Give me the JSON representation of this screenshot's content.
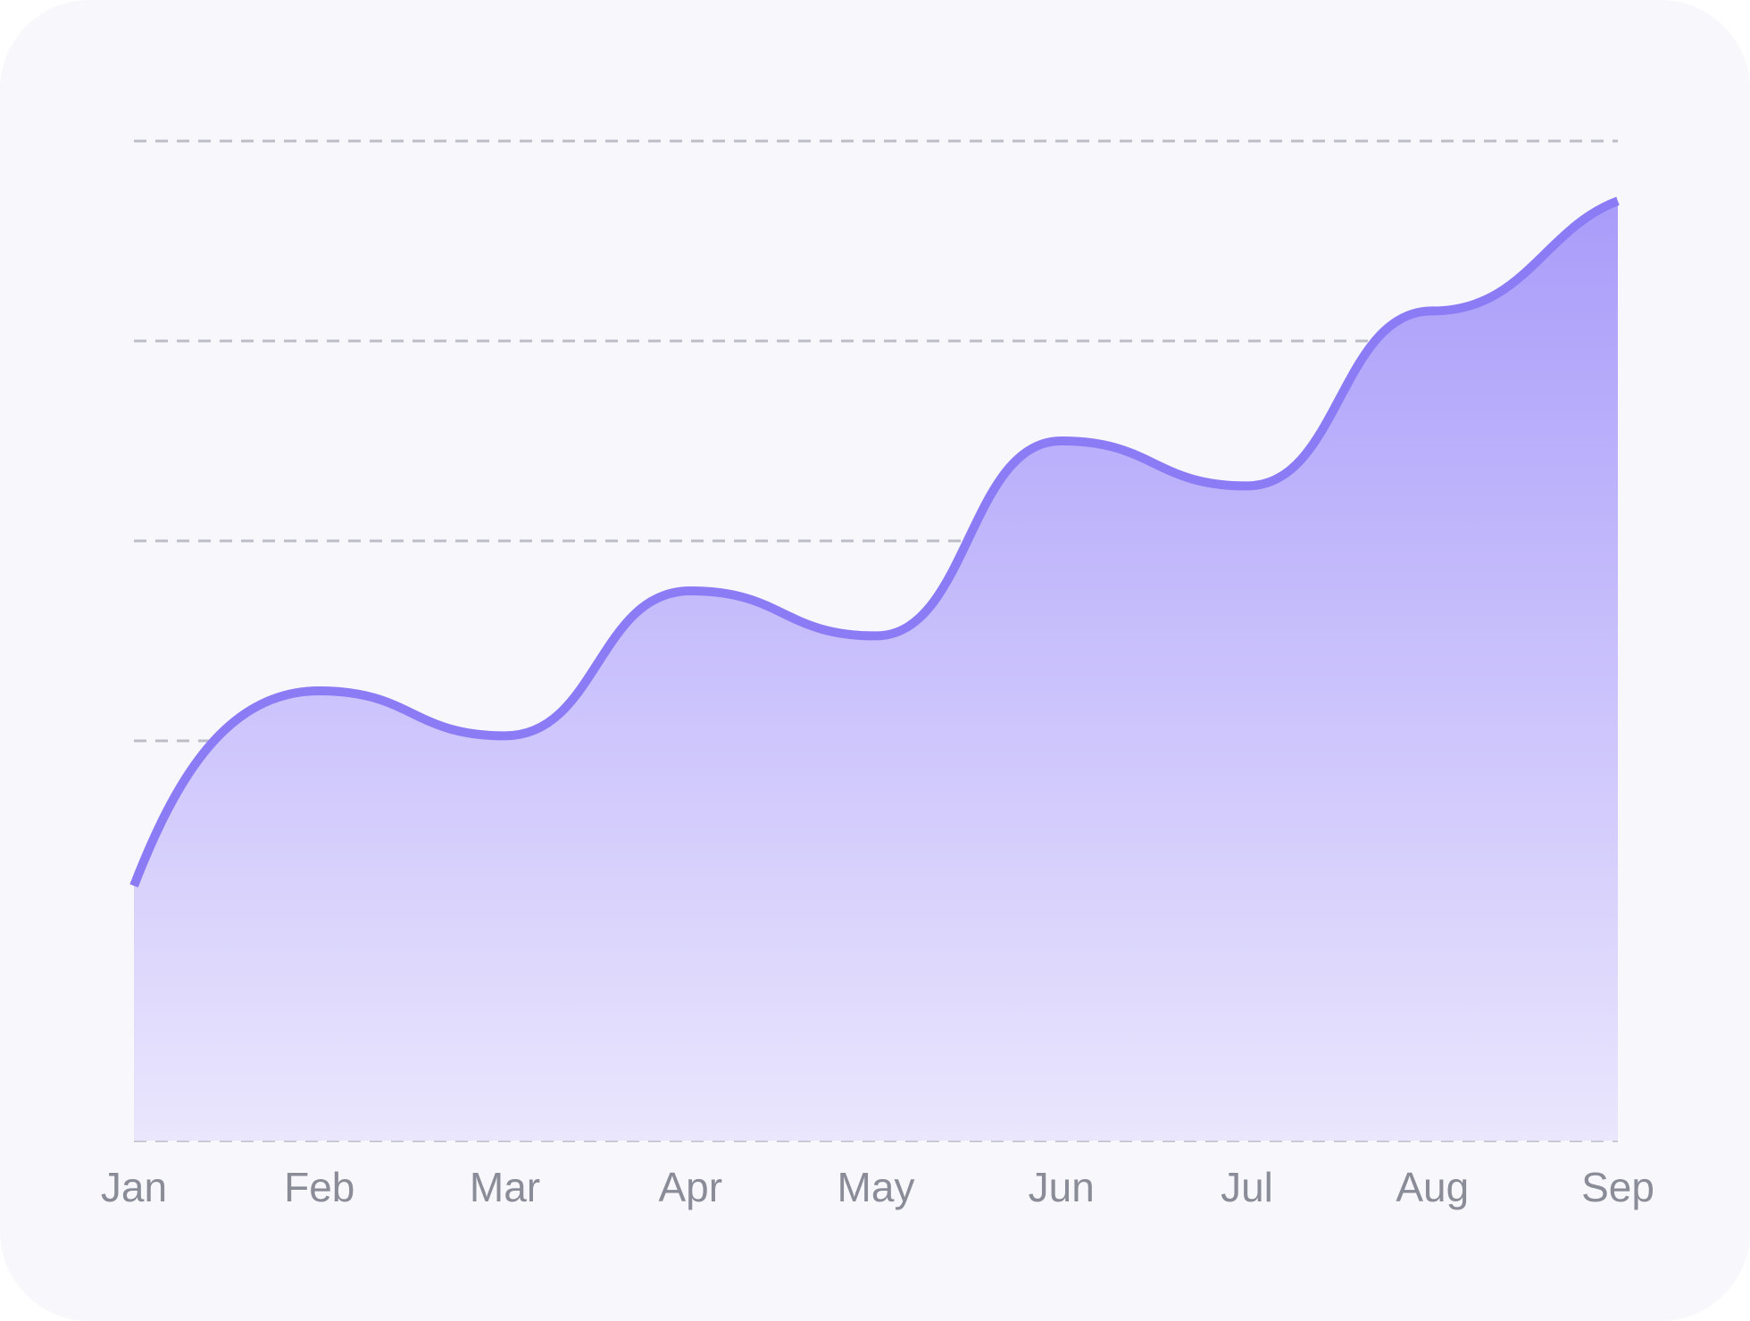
{
  "chart_data": {
    "type": "area",
    "title": "",
    "xlabel": "",
    "ylabel": "",
    "categories": [
      "Jan",
      "Feb",
      "Mar",
      "Apr",
      "May",
      "Jun",
      "Jul",
      "Aug",
      "Sep"
    ],
    "series": [
      {
        "values": [
          25.5,
          45,
          40.5,
          55,
          50.5,
          70,
          65.5,
          83,
          94
        ]
      }
    ],
    "ylim": [
      0,
      100
    ],
    "y_gridlines": [
      0,
      20,
      40,
      60,
      80,
      100
    ],
    "y_tick_labels_shown": false,
    "grid": true,
    "legend": "none",
    "colors": {
      "line": "#8b7cf6",
      "fill_top": "#a99cfa",
      "fill_bottom": "#eae6fd",
      "grid": "#bdbdc7",
      "tick_text": "#8a8c98",
      "background": "#f8f8fc"
    }
  }
}
